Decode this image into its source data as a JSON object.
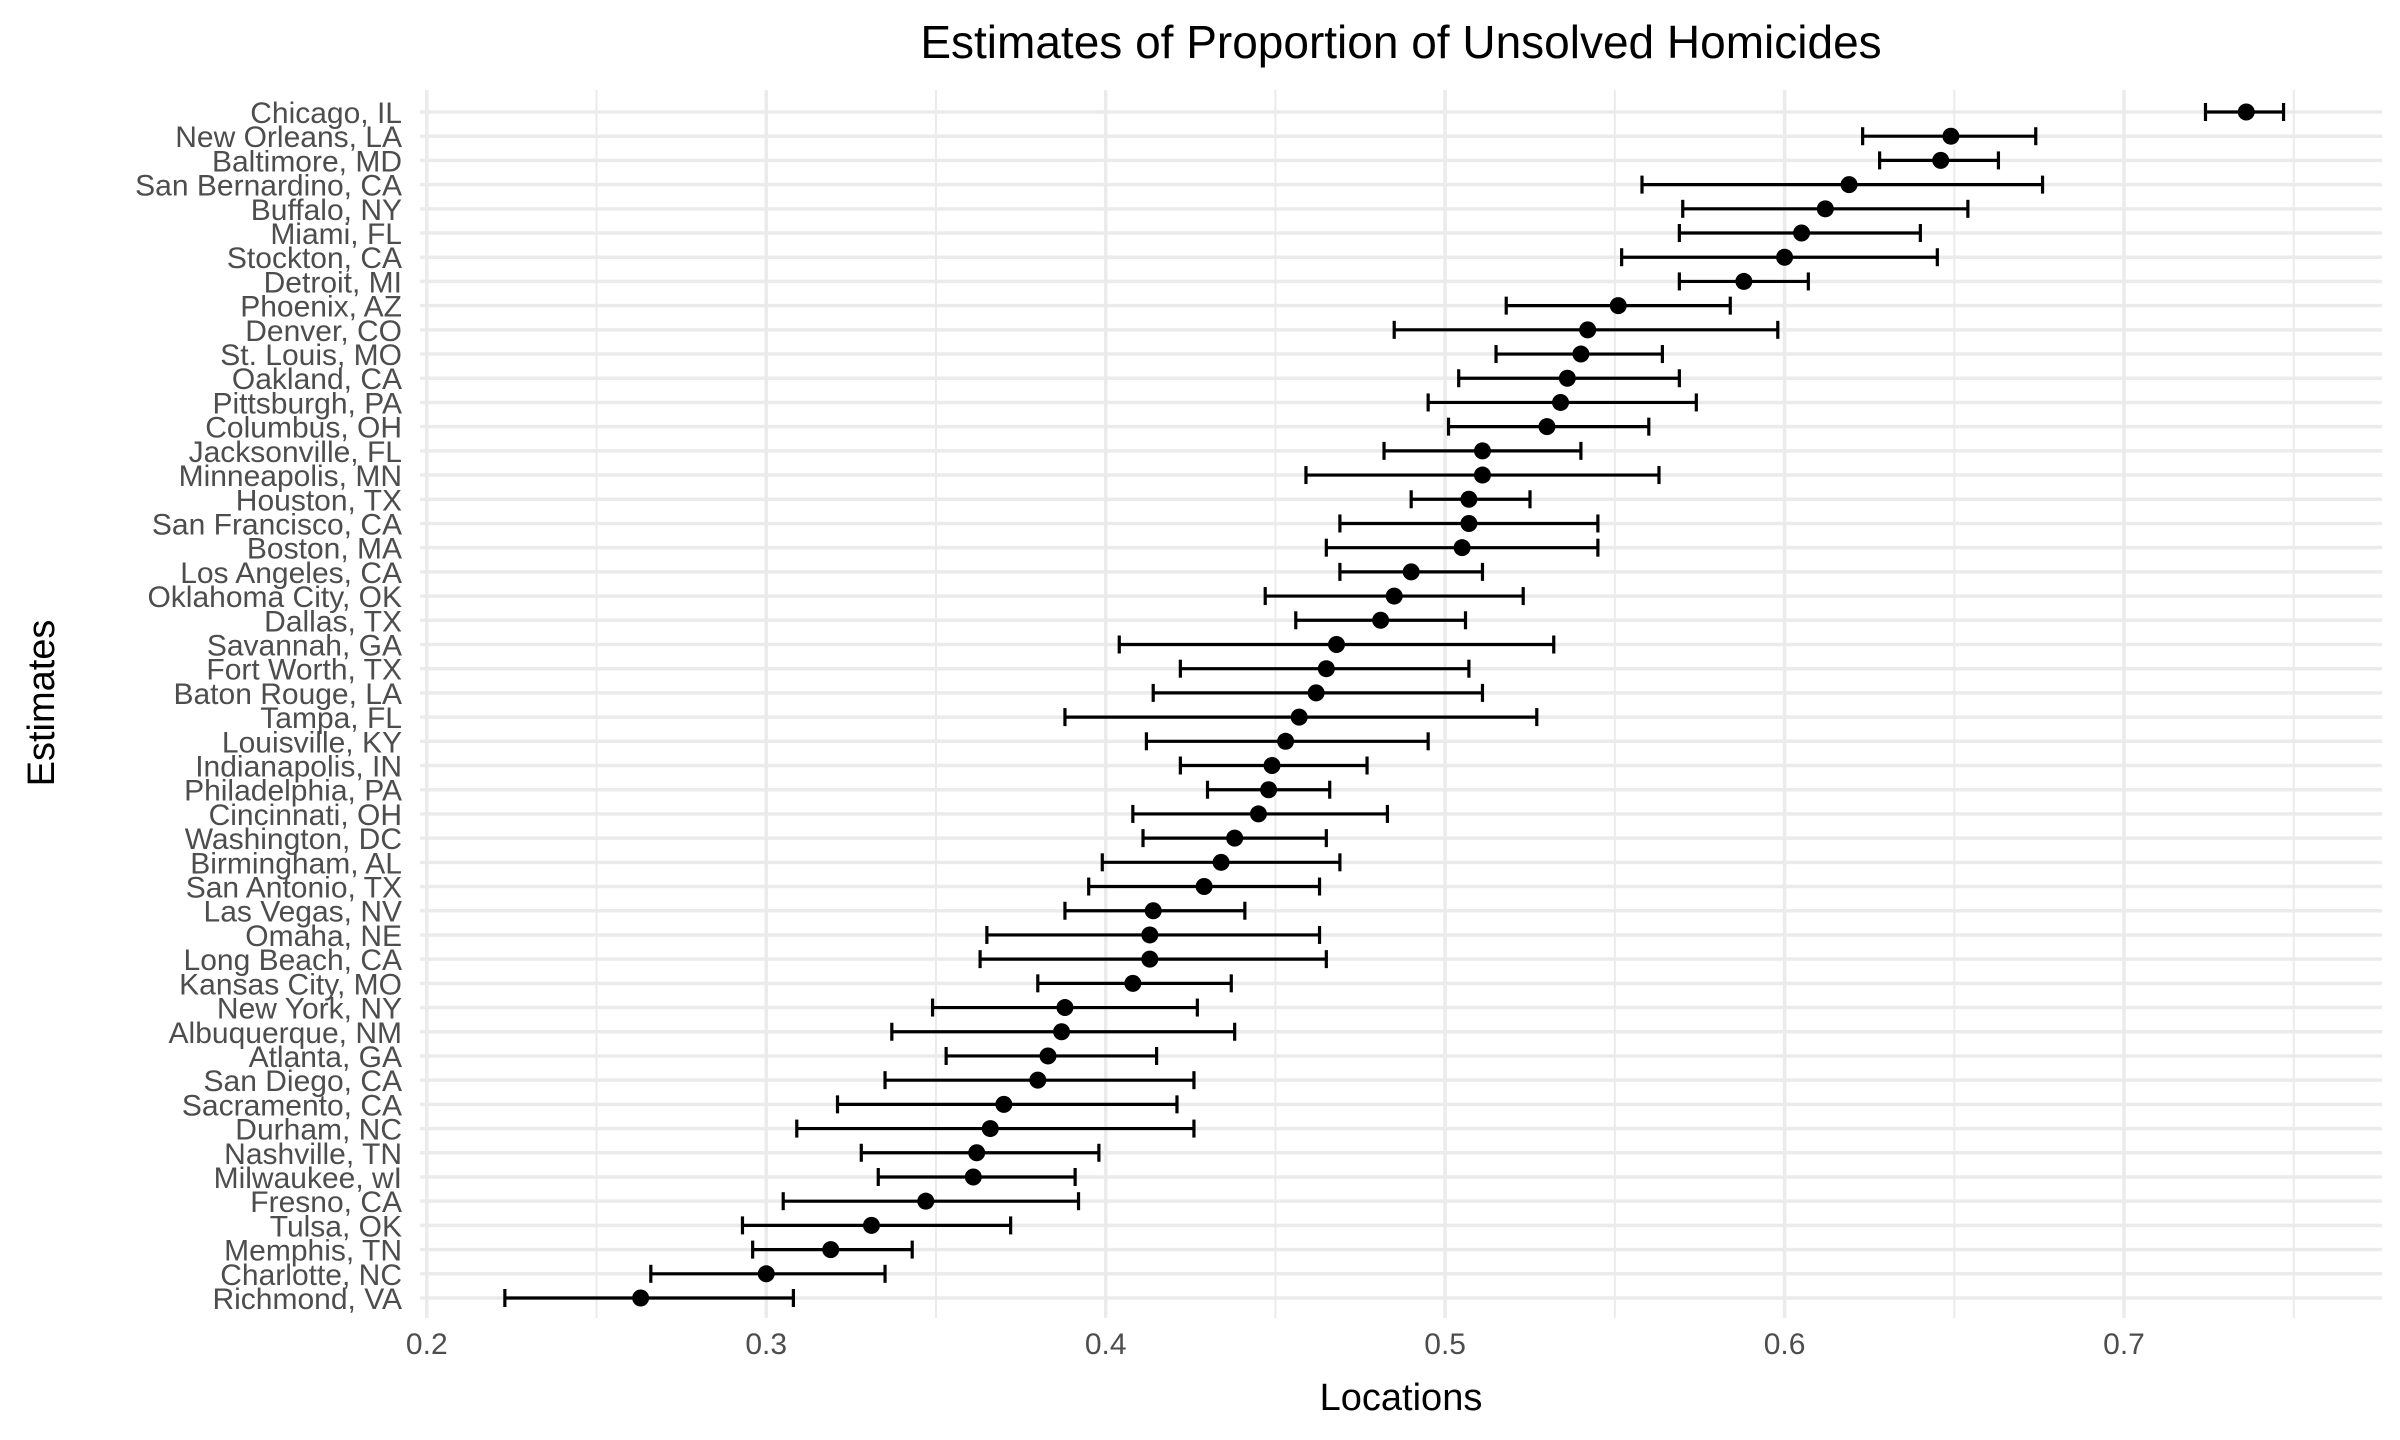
{
  "chart_data": {
    "type": "scatter",
    "title": "Estimates of Proportion of Unsolved Homicides",
    "xlabel": "Locations",
    "ylabel": "Estimates",
    "xlim": [
      0.198,
      0.776
    ],
    "xticks": [
      0.2,
      0.3,
      0.4,
      0.5,
      0.6,
      0.7
    ],
    "xtick_labels": [
      "0.2",
      "0.3",
      "0.4",
      "0.5",
      "0.6",
      "0.7"
    ],
    "grid": true,
    "error_bars": true,
    "point_color": "#000000",
    "grid_color": "#ebebeb",
    "categories": [
      "Chicago, IL",
      "New Orleans, LA",
      "Baltimore, MD",
      "San Bernardino, CA",
      "Buffalo, NY",
      "Miami, FL",
      "Stockton, CA",
      "Detroit, MI",
      "Phoenix, AZ",
      "Denver, CO",
      "St. Louis, MO",
      "Oakland, CA",
      "Pittsburgh, PA",
      "Columbus, OH",
      "Jacksonville, FL",
      "Minneapolis, MN",
      "Houston, TX",
      "San Francisco, CA",
      "Boston, MA",
      "Los Angeles, CA",
      "Oklahoma City, OK",
      "Dallas, TX",
      "Savannah, GA",
      "Fort Worth, TX",
      "Baton Rouge, LA",
      "Tampa, FL",
      "Louisville, KY",
      "Indianapolis, IN",
      "Philadelphia, PA",
      "Cincinnati, OH",
      "Washington, DC",
      "Birmingham, AL",
      "San Antonio, TX",
      "Las Vegas, NV",
      "Omaha, NE",
      "Long Beach, CA",
      "Kansas City, MO",
      "New York, NY",
      "Albuquerque, NM",
      "Atlanta, GA",
      "San Diego, CA",
      "Sacramento, CA",
      "Durham, NC",
      "Nashville, TN",
      "Milwaukee, wI",
      "Fresno, CA",
      "Tulsa, OK",
      "Memphis, TN",
      "Charlotte, NC",
      "Richmond, VA"
    ],
    "estimate": [
      0.736,
      0.649,
      0.646,
      0.619,
      0.612,
      0.605,
      0.6,
      0.588,
      0.551,
      0.542,
      0.54,
      0.536,
      0.534,
      0.53,
      0.511,
      0.511,
      0.507,
      0.507,
      0.505,
      0.49,
      0.485,
      0.481,
      0.468,
      0.465,
      0.462,
      0.457,
      0.453,
      0.449,
      0.448,
      0.445,
      0.438,
      0.434,
      0.429,
      0.414,
      0.413,
      0.413,
      0.408,
      0.388,
      0.387,
      0.383,
      0.38,
      0.37,
      0.366,
      0.362,
      0.361,
      0.347,
      0.331,
      0.319,
      0.3,
      0.263
    ],
    "conf_low": [
      0.724,
      0.623,
      0.628,
      0.558,
      0.57,
      0.569,
      0.552,
      0.569,
      0.518,
      0.485,
      0.515,
      0.504,
      0.495,
      0.501,
      0.482,
      0.459,
      0.49,
      0.469,
      0.465,
      0.469,
      0.447,
      0.456,
      0.404,
      0.422,
      0.414,
      0.388,
      0.412,
      0.422,
      0.43,
      0.408,
      0.411,
      0.399,
      0.395,
      0.388,
      0.365,
      0.363,
      0.38,
      0.349,
      0.337,
      0.353,
      0.335,
      0.321,
      0.309,
      0.328,
      0.333,
      0.305,
      0.293,
      0.296,
      0.266,
      0.223
    ],
    "conf_high": [
      0.747,
      0.674,
      0.663,
      0.676,
      0.654,
      0.64,
      0.645,
      0.607,
      0.584,
      0.598,
      0.564,
      0.569,
      0.574,
      0.56,
      0.54,
      0.563,
      0.525,
      0.545,
      0.545,
      0.511,
      0.523,
      0.506,
      0.532,
      0.507,
      0.511,
      0.527,
      0.495,
      0.477,
      0.466,
      0.483,
      0.465,
      0.469,
      0.463,
      0.441,
      0.463,
      0.465,
      0.437,
      0.427,
      0.438,
      0.415,
      0.426,
      0.421,
      0.426,
      0.398,
      0.391,
      0.392,
      0.372,
      0.343,
      0.335,
      0.308
    ]
  }
}
